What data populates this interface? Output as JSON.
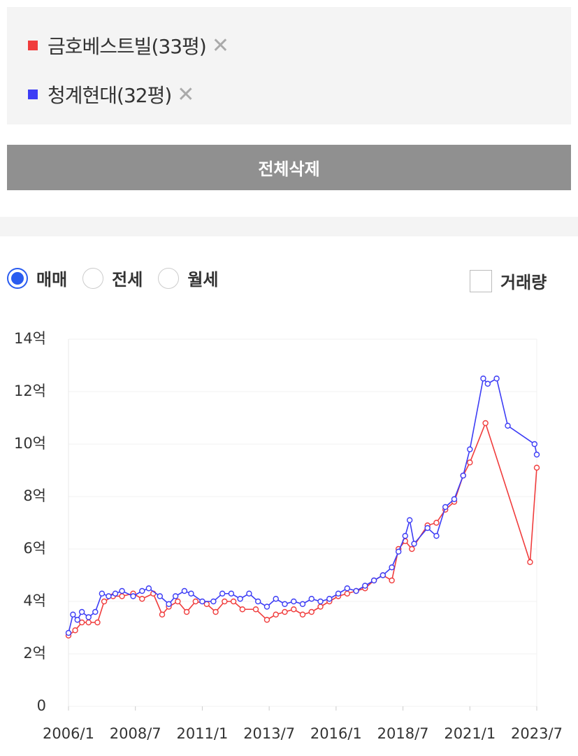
{
  "clear_button": "전체삭제",
  "trade_types": [
    "매매",
    "전세",
    "월세"
  ],
  "selected_trade_type": 0,
  "volume_toggle": "거래량",
  "chart_data": {
    "type": "line",
    "xlim": [
      "2006/1",
      "2023/7"
    ],
    "xticks": [
      "2006/1",
      "2008/7",
      "2011/1",
      "2013/7",
      "2016/1",
      "2018/7",
      "2021/1",
      "2023/7"
    ],
    "ylim": [
      0,
      14
    ],
    "yticks": [
      0,
      {
        "value": 2,
        "label": "2억"
      },
      {
        "value": 4,
        "label": "4억"
      },
      {
        "value": 6,
        "label": "6억"
      },
      {
        "value": 8,
        "label": "8억"
      },
      {
        "value": 10,
        "label": "10억"
      },
      {
        "value": 12,
        "label": "12억"
      },
      {
        "value": 14,
        "label": "14억"
      }
    ],
    "grid": true,
    "series": [
      {
        "name": "금호베스트빌(33평)",
        "color": "#f03c3c",
        "x": [
          "2006/1",
          "2006/4",
          "2006/7",
          "2006/10",
          "2007/2",
          "2007/5",
          "2007/9",
          "2008/1",
          "2008/6",
          "2008/10",
          "2009/3",
          "2009/7",
          "2009/10",
          "2010/2",
          "2010/6",
          "2010/10",
          "2011/3",
          "2011/7",
          "2011/11",
          "2012/3",
          "2012/7",
          "2013/1",
          "2013/6",
          "2013/10",
          "2014/2",
          "2014/6",
          "2014/10",
          "2015/2",
          "2015/6",
          "2015/10",
          "2016/2",
          "2016/6",
          "2016/10",
          "2017/2",
          "2017/6",
          "2017/10",
          "2018/2",
          "2018/5",
          "2018/8",
          "2018/11",
          "2019/6",
          "2019/10",
          "2020/2",
          "2020/6",
          "2020/10",
          "2021/1",
          "2021/8",
          "2023/4",
          "2023/7"
        ],
        "values": [
          2.7,
          2.9,
          3.2,
          3.2,
          3.2,
          4.0,
          4.2,
          4.2,
          4.3,
          4.1,
          4.3,
          3.5,
          3.8,
          4.0,
          3.6,
          4.0,
          3.9,
          3.6,
          4.0,
          4.0,
          3.7,
          3.7,
          3.3,
          3.5,
          3.6,
          3.7,
          3.5,
          3.6,
          3.8,
          4.0,
          4.2,
          4.3,
          4.4,
          4.5,
          4.8,
          5.0,
          4.8,
          6.0,
          6.3,
          6.0,
          6.9,
          7.0,
          7.5,
          7.8,
          8.8,
          9.3,
          10.8,
          5.5,
          9.1
        ]
      },
      {
        "name": "청계현대(32평)",
        "color": "#3c3cf5",
        "x": [
          "2006/1",
          "2006/3",
          "2006/5",
          "2006/7",
          "2006/10",
          "2007/1",
          "2007/4",
          "2007/7",
          "2007/10",
          "2008/1",
          "2008/6",
          "2008/10",
          "2009/1",
          "2009/6",
          "2009/10",
          "2010/1",
          "2010/5",
          "2010/8",
          "2011/1",
          "2011/6",
          "2011/10",
          "2012/2",
          "2012/6",
          "2012/10",
          "2013/2",
          "2013/6",
          "2013/10",
          "2014/2",
          "2014/6",
          "2014/10",
          "2015/2",
          "2015/6",
          "2015/10",
          "2016/2",
          "2016/6",
          "2016/10",
          "2017/2",
          "2017/6",
          "2017/10",
          "2018/2",
          "2018/5",
          "2018/8",
          "2018/10",
          "2018/12",
          "2019/6",
          "2019/10",
          "2020/2",
          "2020/6",
          "2020/10",
          "2021/1",
          "2021/7",
          "2021/9",
          "2022/1",
          "2022/6",
          "2023/6",
          "2023/7"
        ],
        "values": [
          2.8,
          3.5,
          3.3,
          3.6,
          3.4,
          3.6,
          4.3,
          4.2,
          4.3,
          4.4,
          4.2,
          4.4,
          4.5,
          4.2,
          3.9,
          4.2,
          4.4,
          4.3,
          4.0,
          4.0,
          4.3,
          4.3,
          4.1,
          4.3,
          4.0,
          3.8,
          4.1,
          3.9,
          4.0,
          3.9,
          4.1,
          4.0,
          4.1,
          4.3,
          4.5,
          4.4,
          4.6,
          4.8,
          5.0,
          5.3,
          5.9,
          6.5,
          7.1,
          6.2,
          6.8,
          6.5,
          7.6,
          7.9,
          8.8,
          9.8,
          12.5,
          12.3,
          12.5,
          10.7,
          10.0,
          9.6
        ]
      }
    ]
  }
}
